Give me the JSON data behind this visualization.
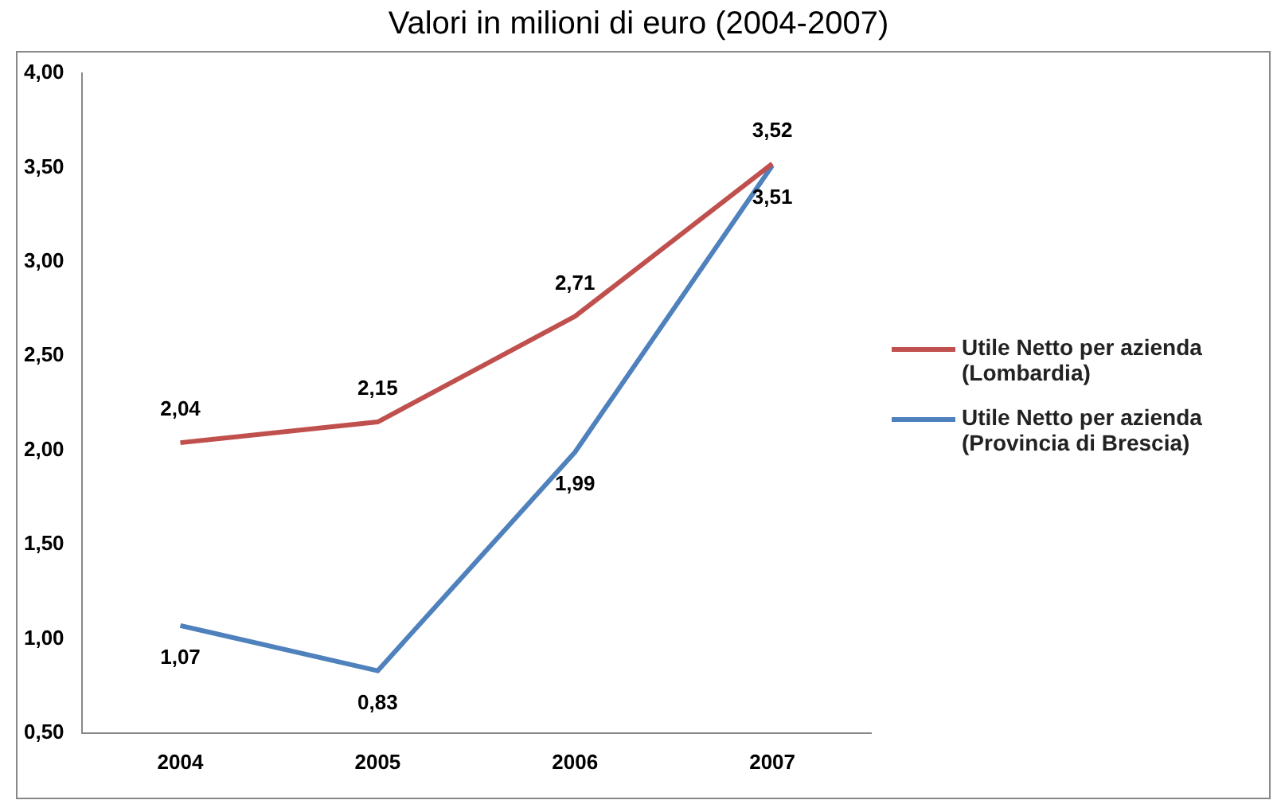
{
  "chart_data": {
    "type": "line",
    "title": "Valori in milioni di euro (2004-2007)",
    "categories": [
      "2004",
      "2005",
      "2006",
      "2007"
    ],
    "series": [
      {
        "name": "Utile Netto  per azienda (Lombardia)",
        "color": "#c0504d",
        "values": [
          2.04,
          2.15,
          2.71,
          3.52
        ],
        "value_labels": [
          "2,04",
          "2,15",
          "2,71",
          "3,52"
        ]
      },
      {
        "name": "Utile Netto  per azienda (Provincia di Brescia)",
        "color": "#4f81bd",
        "values": [
          1.07,
          0.83,
          1.99,
          3.51
        ],
        "value_labels": [
          "1,07",
          "0,83",
          "1,99",
          "3,51"
        ]
      }
    ],
    "ylim": [
      0.5,
      4
    ],
    "yticks": [
      {
        "value": 0.5,
        "label": "0,50"
      },
      {
        "value": 1,
        "label": "1,00"
      },
      {
        "value": 1.5,
        "label": "1,50"
      },
      {
        "value": 2,
        "label": "2,00"
      },
      {
        "value": 2.5,
        "label": "2,50"
      },
      {
        "value": 3,
        "label": "3,00"
      },
      {
        "value": 3.5,
        "label": "3,50"
      },
      {
        "value": 4,
        "label": "4,00"
      }
    ],
    "grid": false,
    "legend": "right",
    "marker": "none",
    "line_style": "solid"
  }
}
